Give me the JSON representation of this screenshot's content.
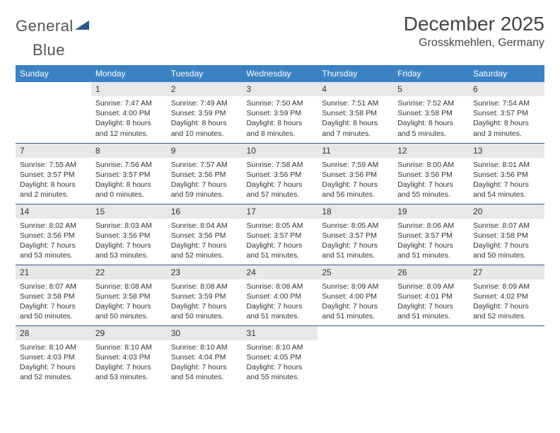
{
  "logo": {
    "text1": "General",
    "text2": "Blue"
  },
  "title": "December 2025",
  "location": "Grosskmehlen, Germany",
  "colors": {
    "header_bg": "#3b82c4",
    "header_text": "#ffffff",
    "daynum_bg": "#e8e8e8",
    "row_border": "#2a5a8a",
    "body_text": "#333333",
    "logo_gray": "#555555",
    "logo_blue": "#2a5a8a"
  },
  "fonts": {
    "title_size": 28,
    "location_size": 16,
    "header_size": 12,
    "daynum_size": 12,
    "cell_size": 10.5
  },
  "weekdays": [
    "Sunday",
    "Monday",
    "Tuesday",
    "Wednesday",
    "Thursday",
    "Friday",
    "Saturday"
  ],
  "weeks": [
    [
      {
        "n": "",
        "sr": "",
        "ss": "",
        "dl": ""
      },
      {
        "n": "1",
        "sr": "Sunrise: 7:47 AM",
        "ss": "Sunset: 4:00 PM",
        "dl": "Daylight: 8 hours and 12 minutes."
      },
      {
        "n": "2",
        "sr": "Sunrise: 7:49 AM",
        "ss": "Sunset: 3:59 PM",
        "dl": "Daylight: 8 hours and 10 minutes."
      },
      {
        "n": "3",
        "sr": "Sunrise: 7:50 AM",
        "ss": "Sunset: 3:59 PM",
        "dl": "Daylight: 8 hours and 8 minutes."
      },
      {
        "n": "4",
        "sr": "Sunrise: 7:51 AM",
        "ss": "Sunset: 3:58 PM",
        "dl": "Daylight: 8 hours and 7 minutes."
      },
      {
        "n": "5",
        "sr": "Sunrise: 7:52 AM",
        "ss": "Sunset: 3:58 PM",
        "dl": "Daylight: 8 hours and 5 minutes."
      },
      {
        "n": "6",
        "sr": "Sunrise: 7:54 AM",
        "ss": "Sunset: 3:57 PM",
        "dl": "Daylight: 8 hours and 3 minutes."
      }
    ],
    [
      {
        "n": "7",
        "sr": "Sunrise: 7:55 AM",
        "ss": "Sunset: 3:57 PM",
        "dl": "Daylight: 8 hours and 2 minutes."
      },
      {
        "n": "8",
        "sr": "Sunrise: 7:56 AM",
        "ss": "Sunset: 3:57 PM",
        "dl": "Daylight: 8 hours and 0 minutes."
      },
      {
        "n": "9",
        "sr": "Sunrise: 7:57 AM",
        "ss": "Sunset: 3:56 PM",
        "dl": "Daylight: 7 hours and 59 minutes."
      },
      {
        "n": "10",
        "sr": "Sunrise: 7:58 AM",
        "ss": "Sunset: 3:56 PM",
        "dl": "Daylight: 7 hours and 57 minutes."
      },
      {
        "n": "11",
        "sr": "Sunrise: 7:59 AM",
        "ss": "Sunset: 3:56 PM",
        "dl": "Daylight: 7 hours and 56 minutes."
      },
      {
        "n": "12",
        "sr": "Sunrise: 8:00 AM",
        "ss": "Sunset: 3:56 PM",
        "dl": "Daylight: 7 hours and 55 minutes."
      },
      {
        "n": "13",
        "sr": "Sunrise: 8:01 AM",
        "ss": "Sunset: 3:56 PM",
        "dl": "Daylight: 7 hours and 54 minutes."
      }
    ],
    [
      {
        "n": "14",
        "sr": "Sunrise: 8:02 AM",
        "ss": "Sunset: 3:56 PM",
        "dl": "Daylight: 7 hours and 53 minutes."
      },
      {
        "n": "15",
        "sr": "Sunrise: 8:03 AM",
        "ss": "Sunset: 3:56 PM",
        "dl": "Daylight: 7 hours and 53 minutes."
      },
      {
        "n": "16",
        "sr": "Sunrise: 8:04 AM",
        "ss": "Sunset: 3:56 PM",
        "dl": "Daylight: 7 hours and 52 minutes."
      },
      {
        "n": "17",
        "sr": "Sunrise: 8:05 AM",
        "ss": "Sunset: 3:57 PM",
        "dl": "Daylight: 7 hours and 51 minutes."
      },
      {
        "n": "18",
        "sr": "Sunrise: 8:05 AM",
        "ss": "Sunset: 3:57 PM",
        "dl": "Daylight: 7 hours and 51 minutes."
      },
      {
        "n": "19",
        "sr": "Sunrise: 8:06 AM",
        "ss": "Sunset: 3:57 PM",
        "dl": "Daylight: 7 hours and 51 minutes."
      },
      {
        "n": "20",
        "sr": "Sunrise: 8:07 AM",
        "ss": "Sunset: 3:58 PM",
        "dl": "Daylight: 7 hours and 50 minutes."
      }
    ],
    [
      {
        "n": "21",
        "sr": "Sunrise: 8:07 AM",
        "ss": "Sunset: 3:58 PM",
        "dl": "Daylight: 7 hours and 50 minutes."
      },
      {
        "n": "22",
        "sr": "Sunrise: 8:08 AM",
        "ss": "Sunset: 3:58 PM",
        "dl": "Daylight: 7 hours and 50 minutes."
      },
      {
        "n": "23",
        "sr": "Sunrise: 8:08 AM",
        "ss": "Sunset: 3:59 PM",
        "dl": "Daylight: 7 hours and 50 minutes."
      },
      {
        "n": "24",
        "sr": "Sunrise: 8:08 AM",
        "ss": "Sunset: 4:00 PM",
        "dl": "Daylight: 7 hours and 51 minutes."
      },
      {
        "n": "25",
        "sr": "Sunrise: 8:09 AM",
        "ss": "Sunset: 4:00 PM",
        "dl": "Daylight: 7 hours and 51 minutes."
      },
      {
        "n": "26",
        "sr": "Sunrise: 8:09 AM",
        "ss": "Sunset: 4:01 PM",
        "dl": "Daylight: 7 hours and 51 minutes."
      },
      {
        "n": "27",
        "sr": "Sunrise: 8:09 AM",
        "ss": "Sunset: 4:02 PM",
        "dl": "Daylight: 7 hours and 52 minutes."
      }
    ],
    [
      {
        "n": "28",
        "sr": "Sunrise: 8:10 AM",
        "ss": "Sunset: 4:03 PM",
        "dl": "Daylight: 7 hours and 52 minutes."
      },
      {
        "n": "29",
        "sr": "Sunrise: 8:10 AM",
        "ss": "Sunset: 4:03 PM",
        "dl": "Daylight: 7 hours and 53 minutes."
      },
      {
        "n": "30",
        "sr": "Sunrise: 8:10 AM",
        "ss": "Sunset: 4:04 PM",
        "dl": "Daylight: 7 hours and 54 minutes."
      },
      {
        "n": "31",
        "sr": "Sunrise: 8:10 AM",
        "ss": "Sunset: 4:05 PM",
        "dl": "Daylight: 7 hours and 55 minutes."
      },
      {
        "n": "",
        "sr": "",
        "ss": "",
        "dl": ""
      },
      {
        "n": "",
        "sr": "",
        "ss": "",
        "dl": ""
      },
      {
        "n": "",
        "sr": "",
        "ss": "",
        "dl": ""
      }
    ]
  ]
}
